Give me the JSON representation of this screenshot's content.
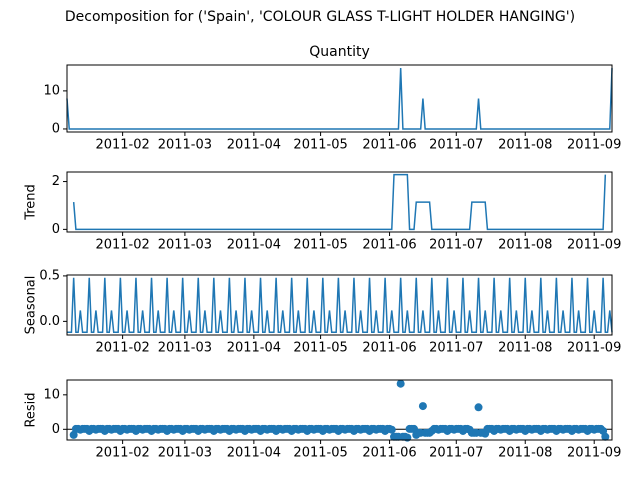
{
  "title": "Decomposition for ('Spain', 'COLOUR GLASS T-LIGHT HOLDER HANGING')",
  "chart_data": [
    {
      "type": "line",
      "title": "Quantity",
      "color": "#1f77b4",
      "x": [
        7,
        8,
        156,
        157,
        158,
        166,
        167,
        168,
        191,
        192,
        193,
        251,
        252
      ],
      "values": [
        8,
        0,
        0,
        16,
        0,
        0,
        8,
        0,
        0,
        8,
        0,
        0,
        16
      ],
      "xlim": [
        7,
        252
      ],
      "xticks": [
        {
          "value": 32,
          "label": "2011-02"
        },
        {
          "value": 60,
          "label": "2011-03"
        },
        {
          "value": 91,
          "label": "2011-04"
        },
        {
          "value": 121,
          "label": "2011-05"
        },
        {
          "value": 152,
          "label": "2011-06"
        },
        {
          "value": 182,
          "label": "2011-07"
        },
        {
          "value": 213,
          "label": "2011-08"
        },
        {
          "value": 244,
          "label": "2011-09"
        }
      ],
      "ylim": [
        -0.8,
        16.8
      ],
      "yticks": [
        0,
        10
      ]
    },
    {
      "type": "line",
      "ylabel": "Trend",
      "color": "#1f77b4",
      "x": [
        10,
        11,
        153,
        154,
        160,
        161,
        163,
        164,
        170,
        171,
        188,
        189,
        195,
        196,
        248,
        249
      ],
      "values": [
        1.14,
        0,
        0,
        2.29,
        2.29,
        0,
        0,
        1.14,
        1.14,
        0,
        0,
        1.14,
        1.14,
        0,
        0,
        2.29
      ],
      "xlim": [
        7,
        252
      ],
      "xticks": [
        {
          "value": 32,
          "label": "2011-02"
        },
        {
          "value": 60,
          "label": "2011-03"
        },
        {
          "value": 91,
          "label": "2011-04"
        },
        {
          "value": 121,
          "label": "2011-05"
        },
        {
          "value": 152,
          "label": "2011-06"
        },
        {
          "value": 182,
          "label": "2011-07"
        },
        {
          "value": 213,
          "label": "2011-08"
        },
        {
          "value": 244,
          "label": "2011-09"
        }
      ],
      "ylim": [
        -0.11,
        2.4
      ],
      "yticks": [
        0,
        2
      ]
    },
    {
      "type": "line",
      "ylabel": "Seasonal",
      "color": "#1f77b4",
      "x": [
        7,
        8,
        9,
        10,
        11,
        12,
        13,
        14,
        15,
        16,
        17,
        18,
        19,
        20,
        21,
        22,
        23,
        24,
        25,
        26,
        27,
        28,
        29,
        30,
        31,
        32,
        33,
        34,
        35,
        36,
        37,
        38,
        39,
        40,
        41,
        42,
        43,
        44,
        45,
        46,
        47,
        48,
        49,
        50,
        51,
        52,
        53,
        54,
        55,
        56,
        57,
        58,
        59,
        60,
        61,
        62,
        63,
        64,
        65,
        66,
        67,
        68,
        69,
        70,
        71,
        72,
        73,
        74,
        75,
        76,
        77,
        78,
        79,
        80,
        81,
        82,
        83,
        84,
        85,
        86,
        87,
        88,
        89,
        90,
        91,
        92,
        93,
        94,
        95,
        96,
        97,
        98,
        99,
        100,
        101,
        102,
        103,
        104,
        105,
        106,
        107,
        108,
        109,
        110,
        111,
        112,
        113,
        114,
        115,
        116,
        117,
        118,
        119,
        120,
        121,
        122,
        123,
        124,
        125,
        126,
        127,
        128,
        129,
        130,
        131,
        132,
        133,
        134,
        135,
        136,
        137,
        138,
        139,
        140,
        141,
        142,
        143,
        144,
        145,
        146,
        147,
        148,
        149,
        150,
        151,
        152,
        153,
        154,
        155,
        156,
        157,
        158,
        159,
        160,
        161,
        162,
        163,
        164,
        165,
        166,
        167,
        168,
        169,
        170,
        171,
        172,
        173,
        174,
        175,
        176,
        177,
        178,
        179,
        180,
        181,
        182,
        183,
        184,
        185,
        186,
        187,
        188,
        189,
        190,
        191,
        192,
        193,
        194,
        195,
        196,
        197,
        198,
        199,
        200,
        201,
        202,
        203,
        204,
        205,
        206,
        207,
        208,
        209,
        210,
        211,
        212,
        213,
        214,
        215,
        216,
        217,
        218,
        219,
        220,
        221,
        222,
        223,
        224,
        225,
        226,
        227,
        228,
        229,
        230,
        231,
        232,
        233,
        234,
        235,
        236,
        237,
        238,
        239,
        240,
        241,
        242,
        243,
        244,
        245,
        246,
        247,
        248,
        249,
        250,
        251,
        252
      ],
      "values": [
        -0.12,
        -0.12,
        -0.12,
        0.48,
        -0.12,
        -0.12,
        0.12,
        -0.12,
        -0.12,
        -0.12,
        0.48,
        -0.12,
        -0.12,
        0.12,
        -0.12,
        -0.12,
        -0.12,
        0.48,
        -0.12,
        -0.12,
        0.12,
        -0.12,
        -0.12,
        -0.12,
        0.48,
        -0.12,
        -0.12,
        0.12,
        -0.12,
        -0.12,
        -0.12,
        0.48,
        -0.12,
        -0.12,
        0.12,
        -0.12,
        -0.12,
        -0.12,
        0.48,
        -0.12,
        -0.12,
        0.12,
        -0.12,
        -0.12,
        -0.12,
        0.48,
        -0.12,
        -0.12,
        0.12,
        -0.12,
        -0.12,
        -0.12,
        0.48,
        -0.12,
        -0.12,
        0.12,
        -0.12,
        -0.12,
        -0.12,
        0.48,
        -0.12,
        -0.12,
        0.12,
        -0.12,
        -0.12,
        -0.12,
        0.48,
        -0.12,
        -0.12,
        0.12,
        -0.12,
        -0.12,
        -0.12,
        0.48,
        -0.12,
        -0.12,
        0.12,
        -0.12,
        -0.12,
        -0.12,
        0.48,
        -0.12,
        -0.12,
        0.12,
        -0.12,
        -0.12,
        -0.12,
        0.48,
        -0.12,
        -0.12,
        0.12,
        -0.12,
        -0.12,
        -0.12,
        0.48,
        -0.12,
        -0.12,
        0.12,
        -0.12,
        -0.12,
        -0.12,
        0.48,
        -0.12,
        -0.12,
        0.12,
        -0.12,
        -0.12,
        -0.12,
        0.48,
        -0.12,
        -0.12,
        0.12,
        -0.12,
        -0.12,
        -0.12,
        0.48,
        -0.12,
        -0.12,
        0.12,
        -0.12,
        -0.12,
        -0.12,
        0.48,
        -0.12,
        -0.12,
        0.12,
        -0.12,
        -0.12,
        -0.12,
        0.48,
        -0.12,
        -0.12,
        0.12,
        -0.12,
        -0.12,
        -0.12,
        0.48,
        -0.12,
        -0.12,
        0.12,
        -0.12,
        -0.12,
        -0.12,
        0.48,
        -0.12,
        -0.12,
        0.12,
        -0.12,
        -0.12,
        -0.12,
        0.48,
        -0.12,
        -0.12,
        0.12,
        -0.12,
        -0.12,
        -0.12,
        0.48,
        -0.12,
        -0.12,
        0.12,
        -0.12,
        -0.12,
        -0.12,
        0.48,
        -0.12,
        -0.12,
        0.12,
        -0.12,
        -0.12,
        -0.12,
        0.48,
        -0.12,
        -0.12,
        0.12,
        -0.12,
        -0.12,
        -0.12,
        0.48,
        -0.12,
        -0.12,
        0.12,
        -0.12,
        -0.12,
        -0.12,
        0.48,
        -0.12,
        -0.12,
        0.12,
        -0.12,
        -0.12,
        -0.12,
        0.48,
        -0.12,
        -0.12,
        0.12,
        -0.12,
        -0.12,
        -0.12,
        0.48,
        -0.12,
        -0.12,
        0.12,
        -0.12,
        -0.12,
        -0.12,
        0.48,
        -0.12,
        -0.12,
        0.12,
        -0.12,
        -0.12,
        -0.12,
        0.48,
        -0.12,
        -0.12,
        0.12,
        -0.12,
        -0.12,
        -0.12,
        0.48,
        -0.12,
        -0.12,
        0.12,
        -0.12,
        -0.12,
        -0.12,
        0.48,
        -0.12,
        -0.12,
        0.12,
        -0.12,
        -0.12,
        -0.12,
        0.48,
        -0.12,
        -0.12,
        0.12,
        -0.12,
        -0.12,
        -0.12,
        0.48,
        -0.12,
        -0.12,
        0.12,
        -0.12
      ],
      "xlim": [
        7,
        252
      ],
      "xticks": [
        {
          "value": 32,
          "label": "2011-02"
        },
        {
          "value": 60,
          "label": "2011-03"
        },
        {
          "value": 91,
          "label": "2011-04"
        },
        {
          "value": 121,
          "label": "2011-05"
        },
        {
          "value": 152,
          "label": "2011-06"
        },
        {
          "value": 182,
          "label": "2011-07"
        },
        {
          "value": 213,
          "label": "2011-08"
        },
        {
          "value": 244,
          "label": "2011-09"
        }
      ],
      "ylim": [
        -0.15,
        0.51
      ],
      "yticks": [
        0.0,
        0.5
      ],
      "ytick_labels": [
        "0.0",
        "0.5"
      ]
    },
    {
      "type": "scatter",
      "ylabel": "Resid",
      "color": "#1f77b4",
      "baseline": 0,
      "x": [
        7,
        8,
        9,
        10,
        11,
        12,
        13,
        14,
        15,
        16,
        17,
        18,
        19,
        20,
        21,
        22,
        23,
        24,
        25,
        26,
        27,
        28,
        29,
        30,
        31,
        32,
        33,
        34,
        35,
        36,
        37,
        38,
        39,
        40,
        41,
        42,
        43,
        44,
        45,
        46,
        47,
        48,
        49,
        50,
        51,
        52,
        53,
        54,
        55,
        56,
        57,
        58,
        59,
        60,
        61,
        62,
        63,
        64,
        65,
        66,
        67,
        68,
        69,
        70,
        71,
        72,
        73,
        74,
        75,
        76,
        77,
        78,
        79,
        80,
        81,
        82,
        83,
        84,
        85,
        86,
        87,
        88,
        89,
        90,
        91,
        92,
        93,
        94,
        95,
        96,
        97,
        98,
        99,
        100,
        101,
        102,
        103,
        104,
        105,
        106,
        107,
        108,
        109,
        110,
        111,
        112,
        113,
        114,
        115,
        116,
        117,
        118,
        119,
        120,
        121,
        122,
        123,
        124,
        125,
        126,
        127,
        128,
        129,
        130,
        131,
        132,
        133,
        134,
        135,
        136,
        137,
        138,
        139,
        140,
        141,
        142,
        143,
        144,
        145,
        146,
        147,
        148,
        149,
        150,
        151,
        152,
        153,
        154,
        155,
        156,
        157,
        158,
        159,
        160,
        161,
        162,
        163,
        164,
        165,
        166,
        167,
        168,
        169,
        170,
        171,
        172,
        173,
        174,
        175,
        176,
        177,
        178,
        179,
        180,
        181,
        182,
        183,
        184,
        185,
        186,
        187,
        188,
        189,
        190,
        191,
        192,
        193,
        194,
        195,
        196,
        197,
        198,
        199,
        200,
        201,
        202,
        203,
        204,
        205,
        206,
        207,
        208,
        209,
        210,
        211,
        212,
        213,
        214,
        215,
        216,
        217,
        218,
        219,
        220,
        221,
        222,
        223,
        224,
        225,
        226,
        227,
        228,
        229,
        230,
        231,
        232,
        233,
        234,
        235,
        236,
        237,
        238,
        239,
        240,
        241,
        242,
        243,
        244,
        245,
        246,
        247,
        248,
        249,
        250,
        251,
        252
      ],
      "values": [
        null,
        null,
        null,
        -1.62,
        0.12,
        0.12,
        -0.12,
        0.12,
        0.12,
        0.12,
        -0.48,
        0.12,
        0.12,
        -0.12,
        0.12,
        0.12,
        0.12,
        -0.48,
        0.12,
        0.12,
        -0.12,
        0.12,
        0.12,
        0.12,
        -0.48,
        0.12,
        0.12,
        -0.12,
        0.12,
        0.12,
        0.12,
        -0.48,
        0.12,
        0.12,
        -0.12,
        0.12,
        0.12,
        0.12,
        -0.48,
        0.12,
        0.12,
        -0.12,
        0.12,
        0.12,
        0.12,
        -0.48,
        0.12,
        0.12,
        -0.12,
        0.12,
        0.12,
        0.12,
        -0.48,
        0.12,
        0.12,
        -0.12,
        0.12,
        0.12,
        0.12,
        -0.48,
        0.12,
        0.12,
        -0.12,
        0.12,
        0.12,
        0.12,
        -0.48,
        0.12,
        0.12,
        -0.12,
        0.12,
        0.12,
        0.12,
        -0.48,
        0.12,
        0.12,
        -0.12,
        0.12,
        0.12,
        0.12,
        -0.48,
        0.12,
        0.12,
        -0.12,
        0.12,
        0.12,
        0.12,
        -0.48,
        0.12,
        0.12,
        -0.12,
        0.12,
        0.12,
        0.12,
        -0.48,
        0.12,
        0.12,
        -0.12,
        0.12,
        0.12,
        0.12,
        -0.48,
        0.12,
        0.12,
        -0.12,
        0.12,
        0.12,
        0.12,
        -0.48,
        0.12,
        0.12,
        -0.12,
        0.12,
        0.12,
        0.12,
        -0.48,
        0.12,
        0.12,
        -0.12,
        0.12,
        0.12,
        0.12,
        -0.48,
        0.12,
        0.12,
        -0.12,
        0.12,
        0.12,
        0.12,
        -0.48,
        0.12,
        0.12,
        -0.12,
        0.12,
        0.12,
        0.12,
        -0.48,
        0.12,
        0.12,
        -0.12,
        0.12,
        0.12,
        0.12,
        -0.48,
        0.12,
        0.12,
        -0.12,
        -2.17,
        -2.17,
        -2.17,
        13.23,
        -2.17,
        -2.17,
        -2.41,
        0.12,
        0.12,
        0.12,
        -1.62,
        -1.02,
        -1.02,
        6.74,
        -1.02,
        -1.02,
        -1.02,
        -0.48,
        0.12,
        0.12,
        -0.12,
        0.12,
        0.12,
        0.12,
        -0.48,
        0.12,
        0.12,
        -0.12,
        0.12,
        0.12,
        0.12,
        -0.48,
        0.12,
        0.12,
        -0.12,
        -1.02,
        -1.02,
        -1.02,
        6.38,
        -1.02,
        -1.02,
        -1.26,
        0.12,
        0.12,
        0.12,
        -0.48,
        0.12,
        0.12,
        -0.12,
        0.12,
        0.12,
        0.12,
        -0.48,
        0.12,
        0.12,
        -0.12,
        0.12,
        0.12,
        0.12,
        -0.48,
        0.12,
        0.12,
        -0.12,
        0.12,
        0.12,
        0.12,
        -0.48,
        0.12,
        0.12,
        -0.12,
        0.12,
        0.12,
        0.12,
        -0.48,
        0.12,
        0.12,
        -0.12,
        0.12,
        0.12,
        0.12,
        -0.48,
        0.12,
        0.12,
        -0.12,
        0.12,
        0.12,
        0.12,
        -0.48,
        0.12,
        0.12,
        -0.12,
        0.12,
        0.12,
        0.12,
        -0.48,
        -2.17,
        null,
        null,
        null
      ],
      "xlim": [
        7,
        252
      ],
      "xticks": [
        {
          "value": 32,
          "label": "2011-02"
        },
        {
          "value": 60,
          "label": "2011-03"
        },
        {
          "value": 91,
          "label": "2011-04"
        },
        {
          "value": 121,
          "label": "2011-05"
        },
        {
          "value": 152,
          "label": "2011-06"
        },
        {
          "value": 182,
          "label": "2011-07"
        },
        {
          "value": 213,
          "label": "2011-08"
        },
        {
          "value": 244,
          "label": "2011-09"
        }
      ],
      "ylim": [
        -3.1,
        14.3
      ],
      "yticks": [
        0,
        10
      ]
    }
  ]
}
